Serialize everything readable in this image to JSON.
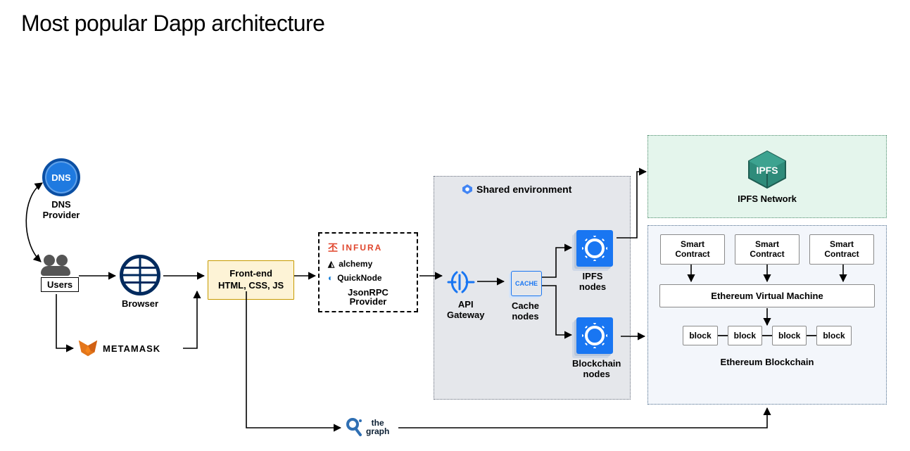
{
  "title": "Most popular Dapp architecture",
  "dns": {
    "badge": "DNS",
    "label": "DNS",
    "label2": "Provider"
  },
  "users": {
    "label": "Users"
  },
  "browser": {
    "label": "Browser"
  },
  "metamask": {
    "label": "METAMASK"
  },
  "frontend": {
    "line1": "Front-end",
    "line2": "HTML, CSS, JS"
  },
  "rpc": {
    "providers": [
      "INFURA",
      "alchemy",
      "QuickNode"
    ],
    "title1": "JsonRPC",
    "title2": "Provider",
    "colors": {
      "infura": "#e0452c",
      "alchemy": "#111111",
      "quicknode": "#0f7ad6"
    }
  },
  "shared": {
    "header": "Shared environment",
    "api": {
      "label": "API",
      "label2": "Gateway"
    },
    "cache": {
      "badge": "CACHE",
      "label": "Cache",
      "label2": "nodes"
    },
    "ipfs_nodes": {
      "label": "IPFS",
      "label2": "nodes"
    },
    "bc_nodes": {
      "label": "Blockchain",
      "label2": "nodes"
    },
    "bg_color": "#e5e7eb",
    "tile_color": "#1976f2"
  },
  "ipfs_net": {
    "badge": "IPFS",
    "label": "IPFS Network",
    "bg_color": "#e4f5ec",
    "cube_color": "#2e8b7a"
  },
  "eth": {
    "sc_label": "Smart\nContract",
    "evm_label": "Ethereum Virtual Machine",
    "block_label": "block",
    "panel_label": "Ethereum Blockchain",
    "bg_color": "#f3f6fb"
  },
  "thegraph": {
    "line1": "the",
    "line2": "graph",
    "color": "#1f3b57"
  },
  "arrow_color": "#000000",
  "arrow_width": 1.5
}
